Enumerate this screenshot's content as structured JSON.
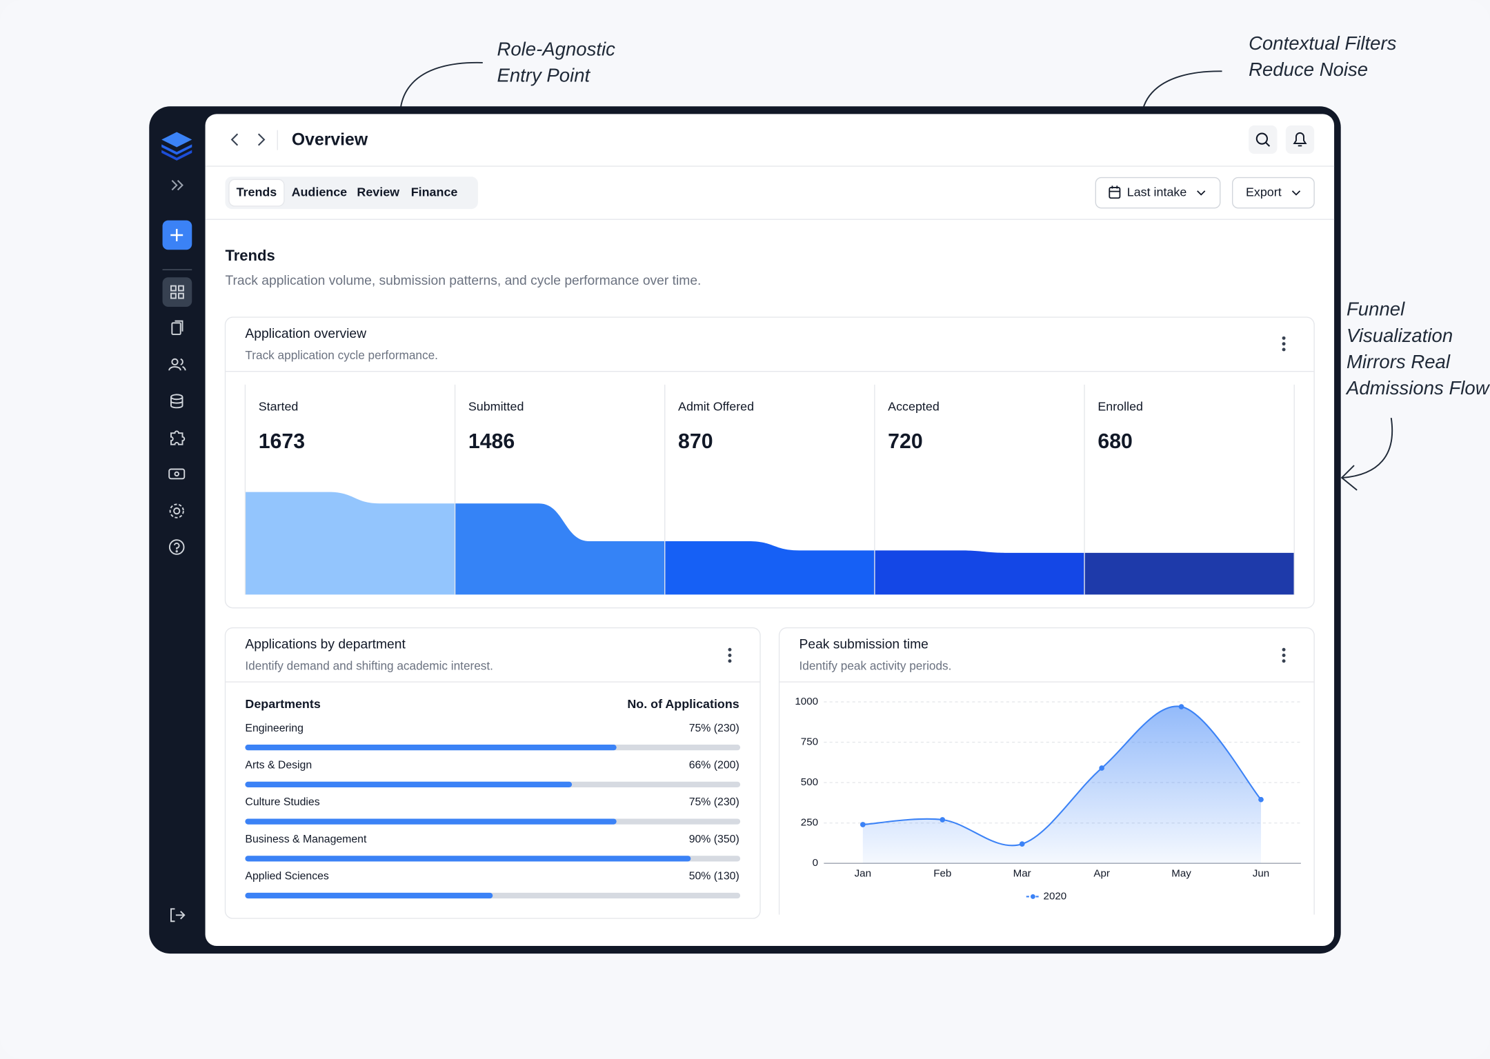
{
  "annotations": [
    {
      "lines": [
        "Role-Agnostic",
        "Entry Point"
      ]
    },
    {
      "lines": [
        "Contextual Filters",
        "Reduce Noise"
      ]
    },
    {
      "lines": [
        "Funnel",
        "Visualization",
        "Mirrors Real",
        "Admissions Flow"
      ]
    }
  ],
  "header": {
    "title": "Overview"
  },
  "tabs": [
    "Trends",
    "Audience",
    "Review",
    "Finance"
  ],
  "filters": {
    "period": "Last intake",
    "export": "Export"
  },
  "section": {
    "title": "Trends",
    "subtitle": "Track application volume, submission patterns, and cycle performance over time."
  },
  "funnel": {
    "title": "Application overview",
    "subtitle": "Track application cycle performance.",
    "stages": [
      {
        "label": "Started",
        "value": 1673,
        "color": "#93c5fd"
      },
      {
        "label": "Submitted",
        "value": 1486,
        "color": "#3583f6"
      },
      {
        "label": "Admit Offered",
        "value": 870,
        "color": "#1660f5"
      },
      {
        "label": "Accepted",
        "value": 720,
        "color": "#1447e6"
      },
      {
        "label": "Enrolled",
        "value": 680,
        "color": "#1e3aaa"
      }
    ]
  },
  "departments": {
    "title": "Applications by department",
    "subtitle": "Identify demand and shifting academic interest.",
    "columns": [
      "Departments",
      "No. of Applications"
    ],
    "rows": [
      {
        "name": "Engineering",
        "percent": 75,
        "label": "75% (230)"
      },
      {
        "name": "Arts & Design",
        "percent": 66,
        "label": "66% (200)"
      },
      {
        "name": "Culture Studies",
        "percent": 75,
        "label": "75% (230)"
      },
      {
        "name": "Business & Management",
        "percent": 90,
        "label": "90% (350)"
      },
      {
        "name": "Applied Sciences",
        "percent": 50,
        "label": "50% (130)"
      }
    ]
  },
  "peak": {
    "title": "Peak submission time",
    "subtitle": "Identify peak activity periods.",
    "chart": {
      "type": "area",
      "categories": [
        "Jan",
        "Feb",
        "Mar",
        "Apr",
        "May",
        "Jun"
      ],
      "series": [
        {
          "name": "2020",
          "color": "#3b82f6",
          "values": [
            240,
            270,
            120,
            590,
            970,
            395
          ]
        }
      ],
      "ylim": [
        0,
        1000
      ],
      "yticks": [
        0,
        250,
        500,
        750,
        1000
      ],
      "grid": true
    }
  }
}
